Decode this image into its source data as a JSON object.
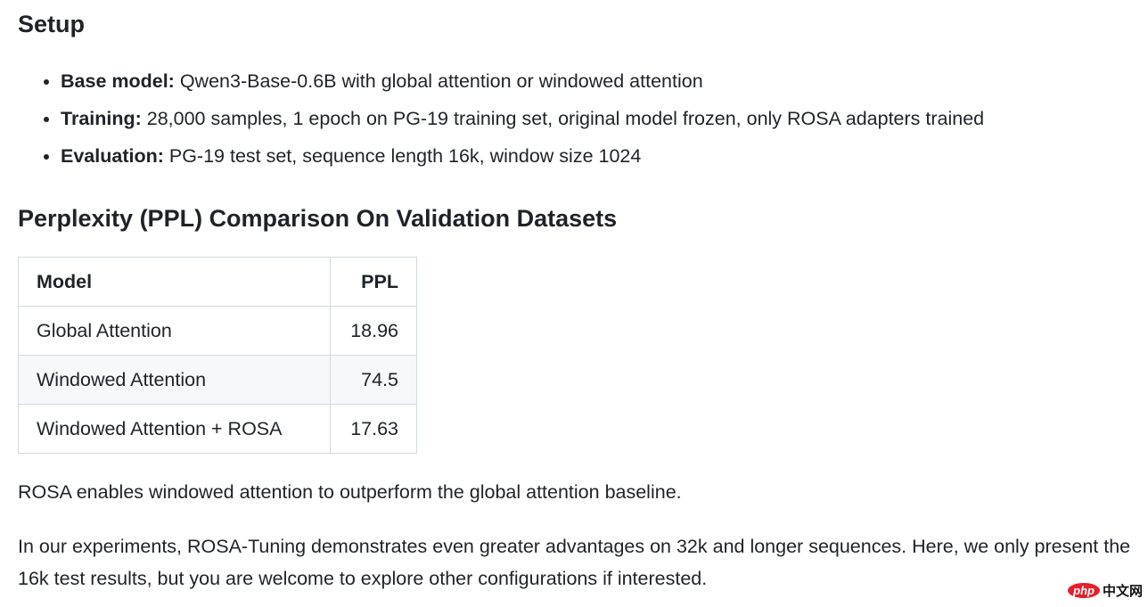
{
  "setup": {
    "heading": "Setup",
    "items": [
      {
        "label": "Base model:",
        "text": " Qwen3-Base-0.6B with global attention or windowed attention"
      },
      {
        "label": "Training:",
        "text": " 28,000 samples, 1 epoch on PG-19 training set, original model frozen, only ROSA adapters trained"
      },
      {
        "label": "Evaluation:",
        "text": " PG-19 test set, sequence length 16k, window size 1024"
      }
    ]
  },
  "ppl": {
    "heading": "Perplexity (PPL) Comparison On Validation Datasets",
    "table": {
      "headers": [
        "Model",
        "PPL"
      ],
      "rows": [
        [
          "Global Attention",
          "18.96"
        ],
        [
          "Windowed Attention",
          "74.5"
        ],
        [
          "Windowed Attention + ROSA",
          "17.63"
        ]
      ]
    },
    "p1": "ROSA enables windowed attention to outperform the global attention baseline.",
    "p2": "In our experiments, ROSA-Tuning demonstrates even greater advantages on 32k and longer sequences. Here, we only present the 16k test results, but you are welcome to explore other configurations if interested."
  },
  "watermark": {
    "logo": "php",
    "text": "中文网"
  }
}
